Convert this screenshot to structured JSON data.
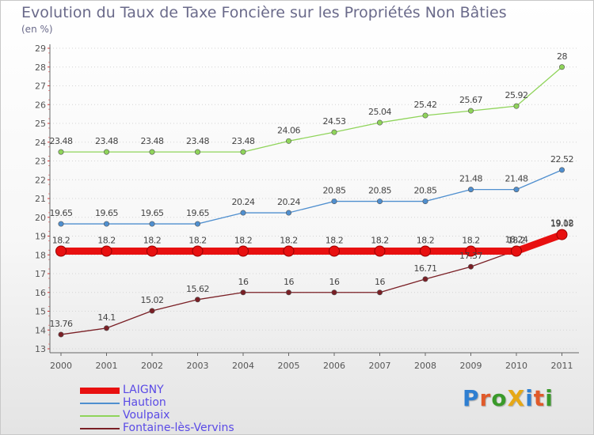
{
  "title": "Evolution du Taux de Taxe Foncière sur les Propriétés Non Bâties",
  "unit_label": "(en %)",
  "logo": {
    "text": "ProXiti",
    "letter_colors": [
      "#2f7fd1",
      "#e05a2a",
      "#3a9a2a",
      "#e6a817",
      "#2f7fd1",
      "#e05a2a",
      "#3a9a2a"
    ]
  },
  "chart_data": {
    "type": "line",
    "x": [
      "2000",
      "2001",
      "2002",
      "2003",
      "2004",
      "2005",
      "2006",
      "2007",
      "2008",
      "2009",
      "2010",
      "2011"
    ],
    "ylim": [
      13,
      29
    ],
    "yticks": [
      "13",
      "14",
      "15",
      "16",
      "17",
      "18",
      "19",
      "20",
      "21",
      "22",
      "23",
      "24",
      "25",
      "26",
      "27",
      "28",
      "29"
    ],
    "grid": "horizontal dotted",
    "legend_position": "bottom-left",
    "series": [
      {
        "name": "LAIGNY",
        "color": "#e81010",
        "values": [
          18.2,
          18.2,
          18.2,
          18.2,
          18.2,
          18.2,
          18.2,
          18.2,
          18.2,
          18.2,
          18.2,
          19.08
        ],
        "labels": [
          "18.2",
          "18.2",
          "18.2",
          "18.2",
          "18.2",
          "18.2",
          "18.2",
          "18.2",
          "18.2",
          "18.2",
          "18.2",
          "19.08"
        ]
      },
      {
        "name": "Haution",
        "color": "#4f8fcf",
        "values": [
          19.65,
          19.65,
          19.65,
          19.65,
          20.24,
          20.24,
          20.85,
          20.85,
          20.85,
          21.48,
          21.48,
          22.52
        ],
        "labels": [
          "19.65",
          "19.65",
          "19.65",
          "19.65",
          "20.24",
          "20.24",
          "20.85",
          "20.85",
          "20.85",
          "21.48",
          "21.48",
          "22.52"
        ]
      },
      {
        "name": "Voulpaix",
        "color": "#8fd45a",
        "values": [
          23.48,
          23.48,
          23.48,
          23.48,
          23.48,
          24.06,
          24.53,
          25.04,
          25.42,
          25.67,
          25.92,
          28
        ],
        "labels": [
          "23.48",
          "23.48",
          "23.48",
          "23.48",
          "23.48",
          "24.06",
          "24.53",
          "25.04",
          "25.42",
          "25.67",
          "25.92",
          "28"
        ]
      },
      {
        "name": "Fontaine-lès-Vervins",
        "color": "#7a1f25",
        "values": [
          13.76,
          14.1,
          15.02,
          15.62,
          16,
          16,
          16,
          16,
          16.71,
          17.37,
          18.24,
          19.12
        ],
        "labels": [
          "13.76",
          "14.1",
          "15.02",
          "15.62",
          "16",
          "16",
          "16",
          "16",
          "16.71",
          "17.37",
          "18.24",
          "19.12"
        ]
      }
    ]
  }
}
